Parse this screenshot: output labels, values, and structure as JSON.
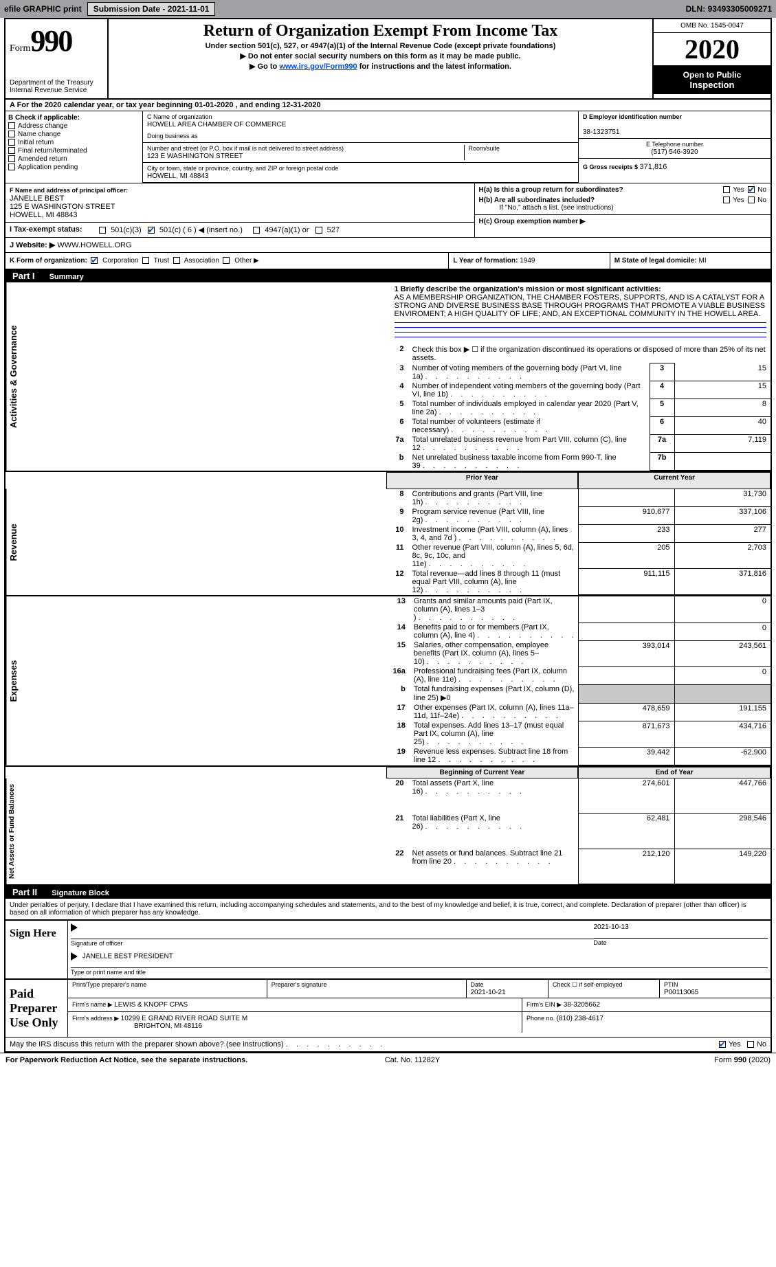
{
  "topbar": {
    "efile": "efile GRAPHIC print",
    "sub_label": "Submission Date - ",
    "sub_date": "2021-11-01",
    "dln_label": "DLN: ",
    "dln": "93493305009271"
  },
  "header": {
    "form_word": "Form",
    "form_num": "990",
    "dept1": "Department of the Treasury",
    "dept2": "Internal Revenue Service",
    "title": "Return of Organization Exempt From Income Tax",
    "sub1": "Under section 501(c), 527, or 4947(a)(1) of the Internal Revenue Code (except private foundations)",
    "sub2": "▶ Do not enter social security numbers on this form as it may be made public.",
    "sub3a": "▶ Go to ",
    "sub3link": "www.irs.gov/Form990",
    "sub3b": " for instructions and the latest information.",
    "omb": "OMB No. 1545-0047",
    "year": "2020",
    "inspect1": "Open to Public",
    "inspect2": "Inspection"
  },
  "rowA": "A For the 2020 calendar year, or tax year beginning 01-01-2020     , and ending 12-31-2020",
  "blockB": {
    "hdr": "B Check if applicable:",
    "o1": "Address change",
    "o2": "Name change",
    "o3": "Initial return",
    "o4": "Final return/terminated",
    "o5": "Amended return",
    "o6": "Application pending"
  },
  "blockC": {
    "hdr": "C Name of organization",
    "name": "HOWELL AREA CHAMBER OF COMMERCE",
    "dba": "Doing business as",
    "addr_hdr": "Number and street (or P.O. box if mail is not delivered to street address)",
    "room": "Room/suite",
    "addr": "123 E WASHINGTON STREET",
    "city_hdr": "City or town, state or province, country, and ZIP or foreign postal code",
    "city": "HOWELL, MI  48843"
  },
  "blockD": {
    "hdr": "D  Employer identification number",
    "ein": "38-1323751"
  },
  "blockE": {
    "hdr": "E  Telephone number",
    "tel": "(517) 546-3920"
  },
  "blockG": {
    "hdr": "G  Gross receipts $ ",
    "val": "371,816"
  },
  "blockF": {
    "hdr": "F  Name and address of principal officer:",
    "l1": "JANELLE BEST",
    "l2": "125 E WASHINGTON STREET",
    "l3": "HOWELL, MI  48843"
  },
  "blockH": {
    "ha": "H(a)  Is this a group return for subordinates?",
    "hb": "H(b)  Are all subordinates included?",
    "hbnote": "If \"No,\" attach a list. (see instructions)",
    "hc": "H(c)  Group exemption number ▶",
    "yes": "Yes",
    "no": "No"
  },
  "blockI": {
    "lbl": "I    Tax-exempt status:",
    "o1": "501(c)(3)",
    "o2": "501(c) ( 6 ) ◀ (insert no.)",
    "o3": "4947(a)(1) or",
    "o4": "527"
  },
  "blockJ": {
    "lbl": "J    Website: ▶ ",
    "val": "WWW.HOWELL.ORG"
  },
  "blockK": {
    "lbl": "K Form of organization:",
    "o1": "Corporation",
    "o2": "Trust",
    "o3": "Association",
    "o4": "Other ▶"
  },
  "blockL": {
    "lbl": "L Year of formation: ",
    "val": "1949"
  },
  "blockM": {
    "lbl": "M State of legal domicile: ",
    "val": "MI"
  },
  "part1": {
    "hdr": "Part I",
    "title": "Summary",
    "l1": "1  Briefly describe the organization's mission or most significant activities:",
    "mission": "AS A MEMBERSHIP ORGANIZATION, THE CHAMBER FOSTERS, SUPPORTS, AND IS A CATALYST FOR A STRONG AND DIVERSE BUSINESS BASE THROUGH PROGRAMS THAT PROMOTE A VIABLE BUSINESS ENVIROMENT; A HIGH QUALITY OF LIFE; AND, AN EXCEPTIONAL COMMUNITY IN THE HOWELL AREA.",
    "l2": "Check this box ▶ ☐  if the organization discontinued its operations or disposed of more than 25% of its net assets.",
    "sideA": "Activities & Governance",
    "sideR": "Revenue",
    "sideE": "Expenses",
    "sideN": "Net Assets or Fund Balances",
    "rows3_7": [
      {
        "n": "3",
        "t": "Number of voting members of the governing body (Part VI, line 1a)",
        "b": "3",
        "v": "15"
      },
      {
        "n": "4",
        "t": "Number of independent voting members of the governing body (Part VI, line 1b)",
        "b": "4",
        "v": "15"
      },
      {
        "n": "5",
        "t": "Total number of individuals employed in calendar year 2020 (Part V, line 2a)",
        "b": "5",
        "v": "8"
      },
      {
        "n": "6",
        "t": "Total number of volunteers (estimate if necessary)",
        "b": "6",
        "v": "40"
      },
      {
        "n": "7a",
        "t": "Total unrelated business revenue from Part VIII, column (C), line 12",
        "b": "7a",
        "v": "7,119"
      },
      {
        "n": "b",
        "t": "Net unrelated business taxable income from Form 990-T, line 39",
        "b": "7b",
        "v": ""
      }
    ],
    "prior": "Prior Year",
    "current": "Current Year",
    "rows8_12": [
      {
        "n": "8",
        "t": "Contributions and grants (Part VIII, line 1h)",
        "p": "",
        "c": "31,730"
      },
      {
        "n": "9",
        "t": "Program service revenue (Part VIII, line 2g)",
        "p": "910,677",
        "c": "337,106"
      },
      {
        "n": "10",
        "t": "Investment income (Part VIII, column (A), lines 3, 4, and 7d )",
        "p": "233",
        "c": "277"
      },
      {
        "n": "11",
        "t": "Other revenue (Part VIII, column (A), lines 5, 6d, 8c, 9c, 10c, and 11e)",
        "p": "205",
        "c": "2,703"
      },
      {
        "n": "12",
        "t": "Total revenue—add lines 8 through 11 (must equal Part VIII, column (A), line 12)",
        "p": "911,115",
        "c": "371,816"
      }
    ],
    "rows13_19": [
      {
        "n": "13",
        "t": "Grants and similar amounts paid (Part IX, column (A), lines 1–3 )",
        "p": "",
        "c": "0"
      },
      {
        "n": "14",
        "t": "Benefits paid to or for members (Part IX, column (A), line 4)",
        "p": "",
        "c": "0"
      },
      {
        "n": "15",
        "t": "Salaries, other compensation, employee benefits (Part IX, column (A), lines 5–10)",
        "p": "393,014",
        "c": "243,561"
      },
      {
        "n": "16a",
        "t": "Professional fundraising fees (Part IX, column (A), line 11e)",
        "p": "",
        "c": "0"
      },
      {
        "n": "b",
        "t": "Total fundraising expenses (Part IX, column (D), line 25) ▶0",
        "p": "NOCOL",
        "c": "NOCOL"
      },
      {
        "n": "17",
        "t": "Other expenses (Part IX, column (A), lines 11a–11d, 11f–24e)",
        "p": "478,659",
        "c": "191,155"
      },
      {
        "n": "18",
        "t": "Total expenses. Add lines 13–17 (must equal Part IX, column (A), line 25)",
        "p": "871,673",
        "c": "434,716"
      },
      {
        "n": "19",
        "t": "Revenue less expenses. Subtract line 18 from line 12",
        "p": "39,442",
        "c": "-62,900"
      }
    ],
    "begin": "Beginning of Current Year",
    "end": "End of Year",
    "rows20_22": [
      {
        "n": "20",
        "t": "Total assets (Part X, line 16)",
        "p": "274,601",
        "c": "447,766"
      },
      {
        "n": "21",
        "t": "Total liabilities (Part X, line 26)",
        "p": "62,481",
        "c": "298,546"
      },
      {
        "n": "22",
        "t": "Net assets or fund balances. Subtract line 21 from line 20",
        "p": "212,120",
        "c": "149,220"
      }
    ]
  },
  "part2": {
    "hdr": "Part II",
    "title": "Signature Block",
    "decl": "Under penalties of perjury, I declare that I have examined this return, including accompanying schedules and statements, and to the best of my knowledge and belief, it is true, correct, and complete. Declaration of preparer (other than officer) is based on all information of which preparer has any knowledge.",
    "sign": "Sign Here",
    "sig_of": "Signature of officer",
    "date": "Date",
    "sig_date": "2021-10-13",
    "name_title": "JANELLE BEST PRESIDENT",
    "type_name": "Type or print name and title",
    "paid": "Paid Preparer Use Only",
    "prep_name_hdr": "Print/Type preparer's name",
    "prep_sig_hdr": "Preparer's signature",
    "prep_date_hdr": "Date",
    "prep_date": "2021-10-21",
    "check_se": "Check ☐ if self-employed",
    "ptin_hdr": "PTIN",
    "ptin": "P00113065",
    "firm_name_hdr": "Firm's name      ▶ ",
    "firm_name": "LEWIS & KNOPF CPAS",
    "firm_ein_hdr": "Firm's EIN ▶ ",
    "firm_ein": "38-3205662",
    "firm_addr_hdr": "Firm's address ▶ ",
    "firm_addr1": "10299 E GRAND RIVER ROAD SUITE M",
    "firm_addr2": "BRIGHTON, MI  48116",
    "phone_hdr": "Phone no. ",
    "phone": "(810) 238-4617",
    "discuss": "May the IRS discuss this return with the preparer shown above? (see instructions)",
    "yes": "Yes",
    "no": "No"
  },
  "footer": {
    "l": "For Paperwork Reduction Act Notice, see the separate instructions.",
    "c": "Cat. No. 11282Y",
    "r": "Form 990 (2020)"
  }
}
